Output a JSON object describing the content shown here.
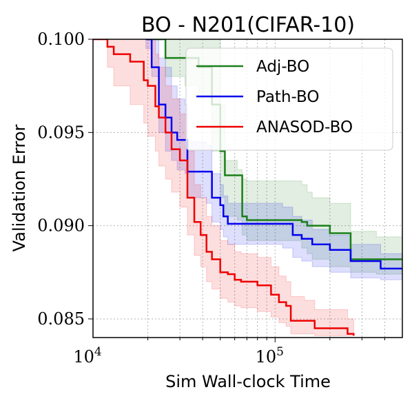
{
  "chart_data": {
    "type": "line",
    "title": "BO - N201(CIFAR-10)",
    "xlabel": "Sim Wall-clock Time",
    "ylabel": "Validation Error",
    "xscale": "log",
    "xlim": [
      10000,
      500000
    ],
    "ylim": [
      0.084,
      0.1
    ],
    "xticks": [
      {
        "value": 10000,
        "base": "10",
        "exp": "4"
      },
      {
        "value": 100000,
        "base": "10",
        "exp": "5"
      }
    ],
    "yticks": [
      {
        "value": 0.085,
        "label": "0.085"
      },
      {
        "value": 0.09,
        "label": "0.090"
      },
      {
        "value": 0.095,
        "label": "0.095"
      },
      {
        "value": 0.1,
        "label": "0.100"
      }
    ],
    "grid": true,
    "legend_position": "top-right",
    "series": [
      {
        "name": "Adj-BO",
        "color": "#1a7f1a",
        "x": [
          20000,
          25000,
          32000,
          38000,
          45000,
          50000,
          53000,
          62000,
          66000,
          70000,
          140000,
          150000,
          160000,
          200000,
          260000,
          360000,
          500000
        ],
        "y": [
          0.1,
          0.099,
          0.099,
          0.0985,
          0.0965,
          0.094,
          0.0927,
          0.0927,
          0.0905,
          0.0903,
          0.0902,
          0.09,
          0.09,
          0.0896,
          0.0882,
          0.0882,
          0.0882
        ],
        "lower": [
          0.1,
          0.098,
          0.0975,
          0.097,
          0.094,
          0.0915,
          0.0905,
          0.0903,
          0.0895,
          0.0892,
          0.0888,
          0.0885,
          0.0882,
          0.0878,
          0.0875,
          0.0874,
          0.0874
        ],
        "upper": [
          0.1,
          0.1,
          0.1,
          0.1,
          0.1,
          0.0965,
          0.0935,
          0.093,
          0.0925,
          0.0924,
          0.0922,
          0.0918,
          0.0915,
          0.0912,
          0.0897,
          0.0894,
          0.0894
        ]
      },
      {
        "name": "Path-BO",
        "color": "#0000ee",
        "x": [
          19500,
          21000,
          23000,
          25000,
          27000,
          29000,
          32000,
          33000,
          42000,
          45000,
          50000,
          52000,
          55000,
          110000,
          125000,
          140000,
          160000,
          200000,
          260000,
          380000,
          500000
        ],
        "y": [
          0.1,
          0.0985,
          0.0965,
          0.0958,
          0.095,
          0.0946,
          0.0946,
          0.0929,
          0.0929,
          0.0915,
          0.0911,
          0.0905,
          0.0901,
          0.0901,
          0.0895,
          0.0893,
          0.089,
          0.0887,
          0.0881,
          0.0877,
          0.0877
        ],
        "lower": [
          0.0995,
          0.098,
          0.095,
          0.094,
          0.0935,
          0.093,
          0.0928,
          0.0915,
          0.0912,
          0.0902,
          0.0898,
          0.0894,
          0.089,
          0.0888,
          0.0883,
          0.0881,
          0.0878,
          0.0875,
          0.0872,
          0.0871,
          0.0871
        ],
        "upper": [
          0.1,
          0.1,
          0.099,
          0.0985,
          0.0975,
          0.0968,
          0.0965,
          0.0945,
          0.0943,
          0.0928,
          0.0922,
          0.0916,
          0.0912,
          0.091,
          0.0905,
          0.0903,
          0.0898,
          0.0895,
          0.089,
          0.0885,
          0.0885
        ]
      },
      {
        "name": "ANASOD-BO",
        "color": "#ee0000",
        "x": [
          10000,
          12000,
          13000,
          16000,
          19000,
          20000,
          22000,
          23000,
          25000,
          27000,
          30000,
          33000,
          36000,
          39000,
          42000,
          45000,
          50000,
          55000,
          60000,
          65000,
          70000,
          80000,
          95000,
          105000,
          115000,
          122000,
          145000,
          165000,
          250000,
          270000
        ],
        "y": [
          0.1,
          0.0996,
          0.0992,
          0.0988,
          0.0978,
          0.0975,
          0.0964,
          0.0958,
          0.095,
          0.0941,
          0.0935,
          0.0915,
          0.0902,
          0.0895,
          0.0886,
          0.0882,
          0.0875,
          0.0874,
          0.0871,
          0.087,
          0.087,
          0.0868,
          0.0863,
          0.0859,
          0.0857,
          0.0849,
          0.0849,
          0.0845,
          0.0842,
          0.0841
        ],
        "lower": [
          0.1,
          0.0985,
          0.0975,
          0.0965,
          0.0955,
          0.0948,
          0.094,
          0.0932,
          0.0925,
          0.0918,
          0.091,
          0.0895,
          0.0884,
          0.0878,
          0.087,
          0.0866,
          0.0861,
          0.0859,
          0.0857,
          0.0856,
          0.0856,
          0.0854,
          0.0851,
          0.0848,
          0.0846,
          0.0842,
          0.0842,
          0.0841,
          0.0841,
          0.0841
        ],
        "upper": [
          0.1,
          0.1,
          0.1,
          0.1,
          0.1,
          0.1,
          0.0992,
          0.0985,
          0.0975,
          0.0968,
          0.096,
          0.094,
          0.0922,
          0.0915,
          0.0905,
          0.09,
          0.0892,
          0.089,
          0.0886,
          0.0885,
          0.0885,
          0.0883,
          0.0878,
          0.0873,
          0.087,
          0.0862,
          0.086,
          0.0855,
          0.085,
          0.0848
        ]
      }
    ]
  }
}
